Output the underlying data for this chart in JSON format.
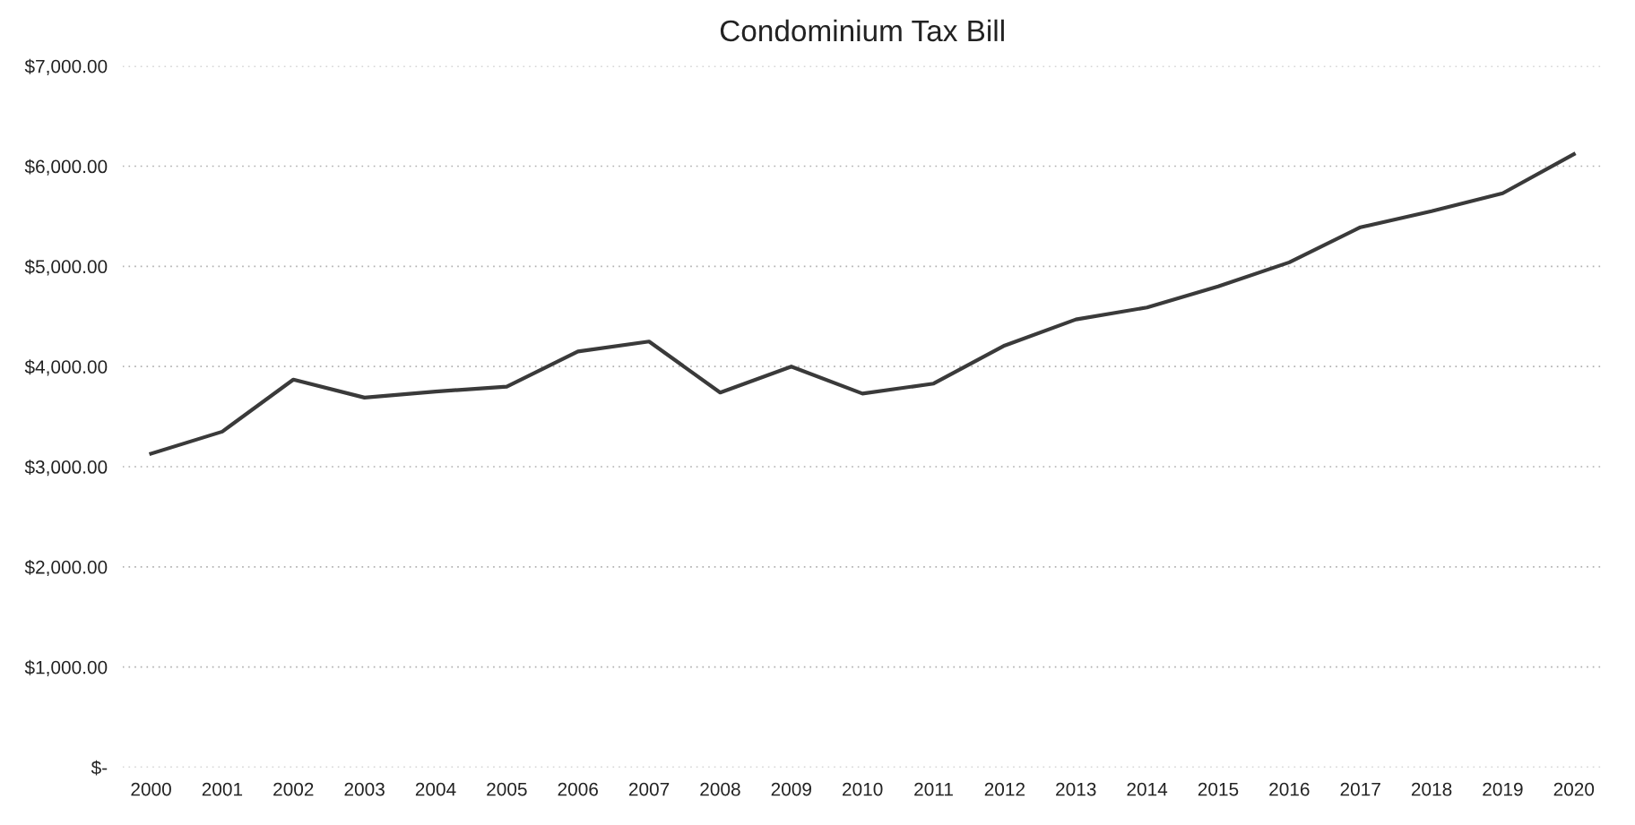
{
  "chart_data": {
    "type": "line",
    "title": "Condominium Tax Bill",
    "categories": [
      "2000",
      "2001",
      "2002",
      "2003",
      "2004",
      "2005",
      "2006",
      "2007",
      "2008",
      "2009",
      "2010",
      "2011",
      "2012",
      "2013",
      "2014",
      "2015",
      "2016",
      "2017",
      "2018",
      "2019",
      "2020"
    ],
    "series": [
      {
        "color": "#3a3a3a",
        "values": [
          3130,
          3350,
          3870,
          3690,
          3750,
          3800,
          4150,
          4250,
          3740,
          4000,
          3730,
          3830,
          4210,
          4470,
          4590,
          4800,
          5040,
          5390,
          5550,
          5730,
          6120
        ]
      }
    ],
    "ylim": [
      0,
      7000
    ],
    "yticks": [
      {
        "value": 0,
        "label": "$-"
      },
      {
        "value": 1000,
        "label": "$1,000.00"
      },
      {
        "value": 2000,
        "label": "$2,000.00"
      },
      {
        "value": 3000,
        "label": "$3,000.00"
      },
      {
        "value": 4000,
        "label": "$4,000.00"
      },
      {
        "value": 5000,
        "label": "$5,000.00"
      },
      {
        "value": 6000,
        "label": "$6,000.00"
      },
      {
        "value": 7000,
        "label": "$7,000.00"
      }
    ],
    "grid": "y",
    "marker": "none",
    "line_style": "solid"
  }
}
